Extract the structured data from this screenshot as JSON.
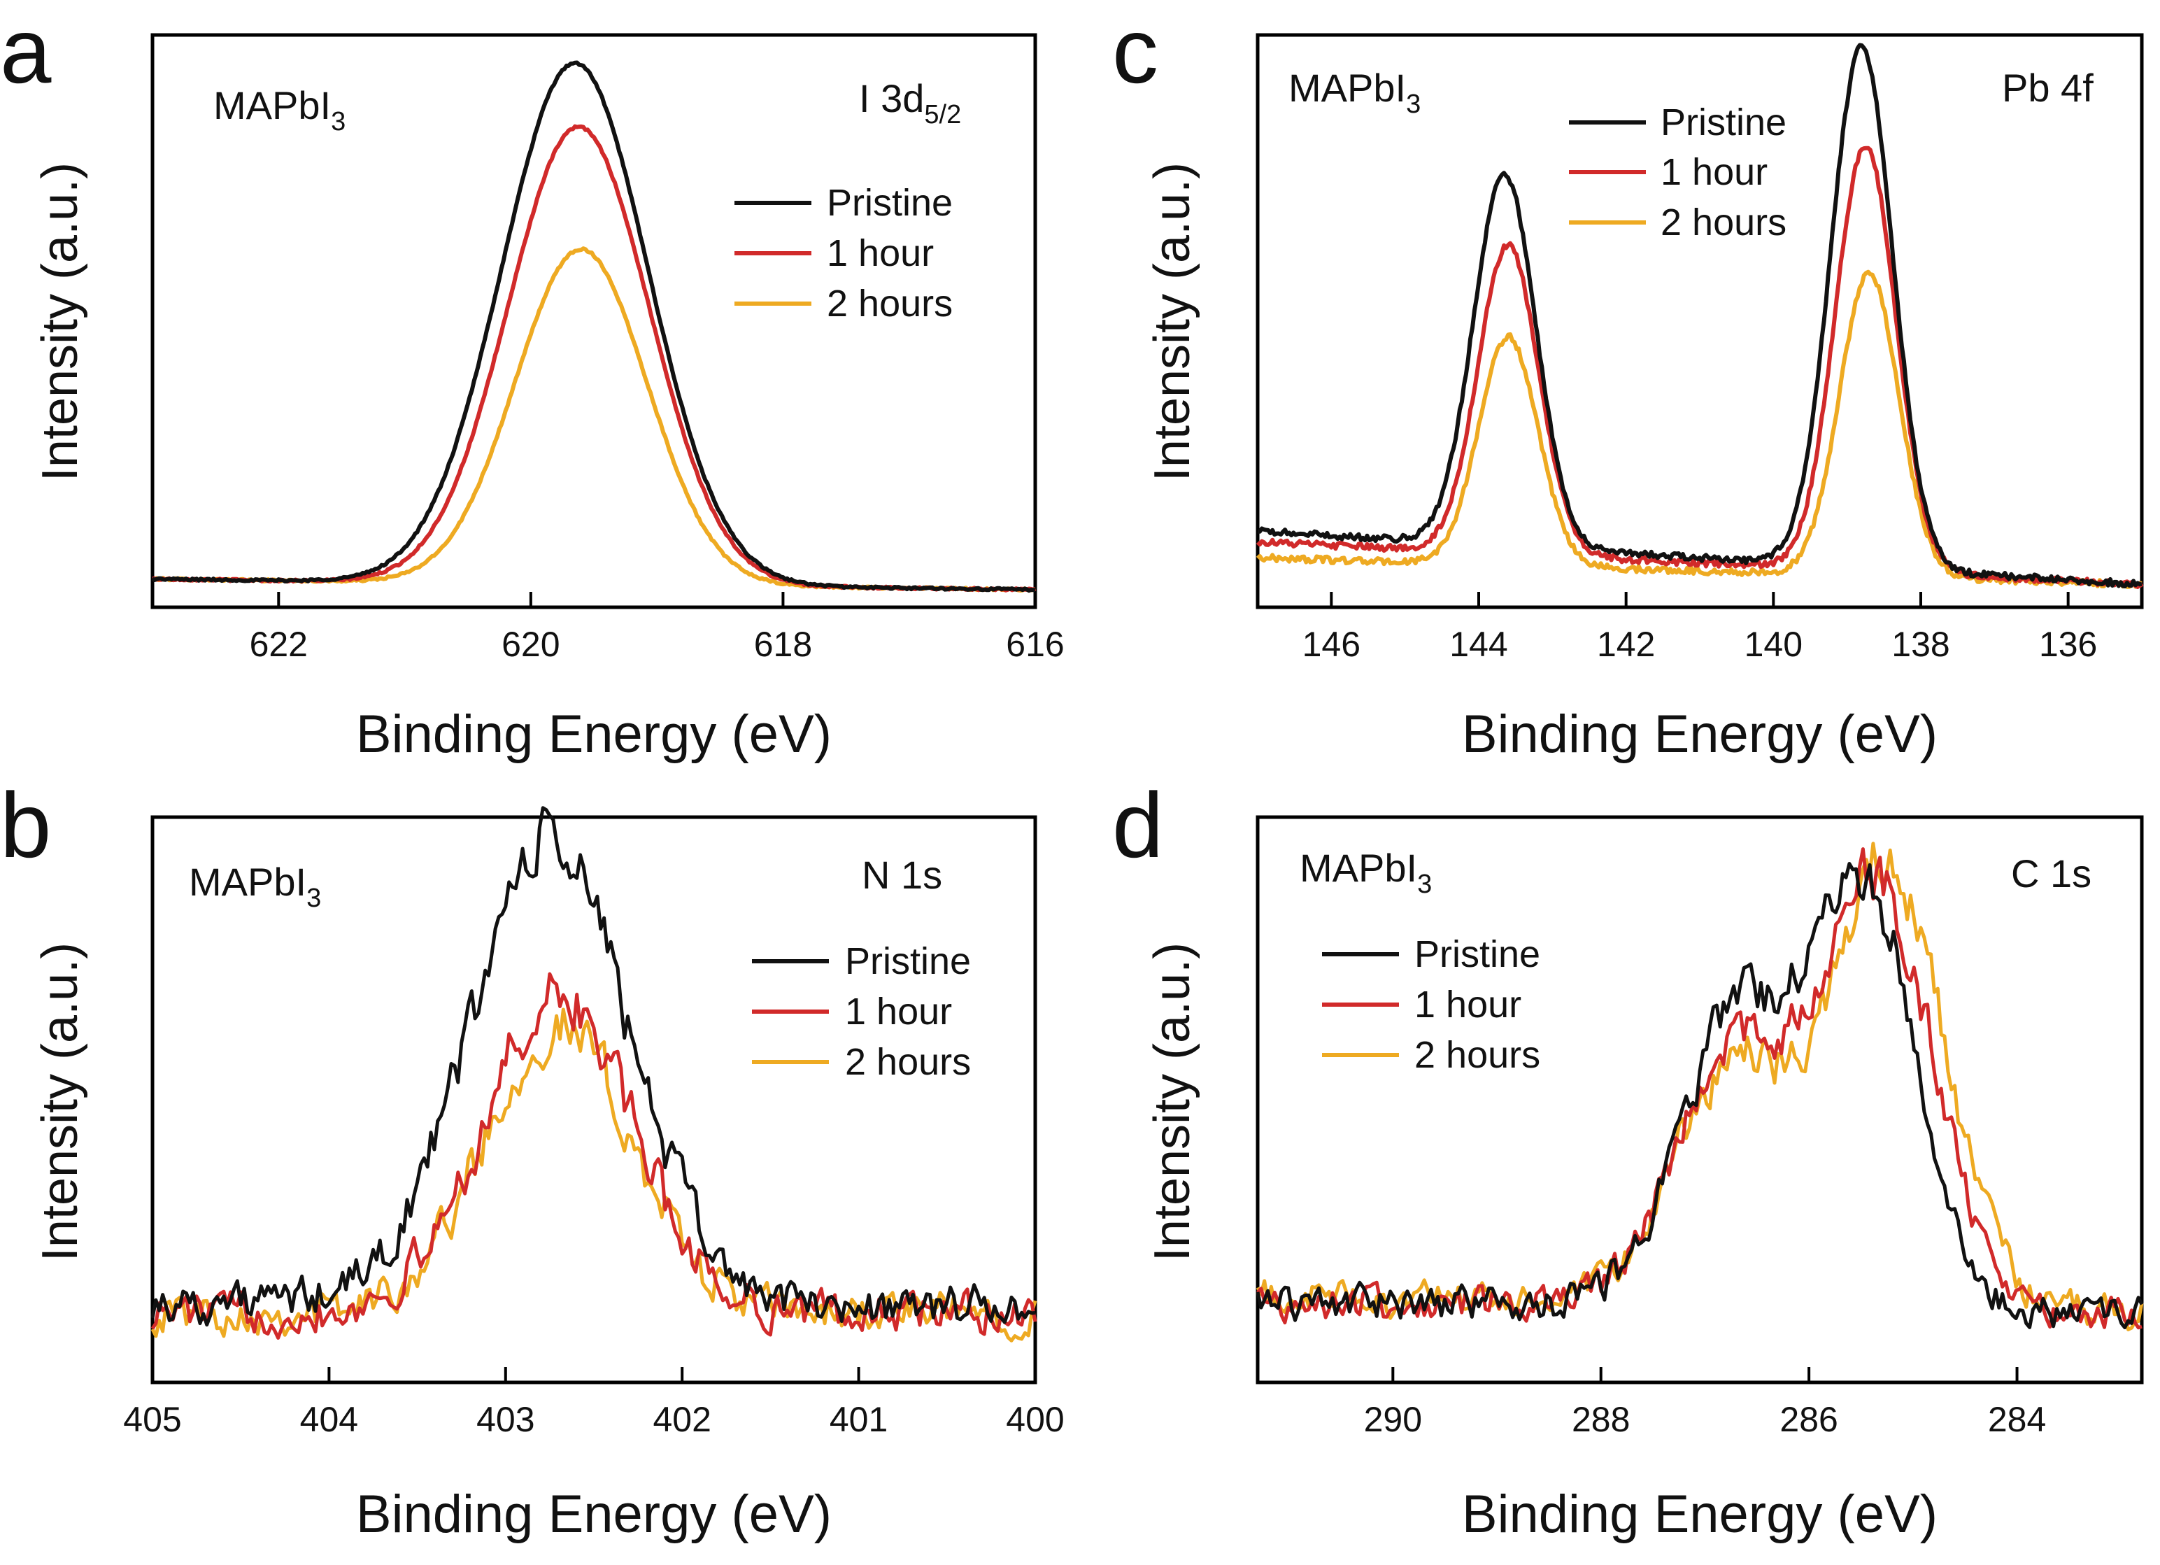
{
  "figure": {
    "colors": {
      "Pristine": "#111111",
      "1 hour": "#d12a2a",
      "2 hours": "#eeaa22"
    }
  },
  "chart_data": [
    {
      "type": "line",
      "panel": "a",
      "title": "I 3d5/2",
      "title_main": "I 3d",
      "title_sub": "5/2",
      "sample_label_main": "MAPbI",
      "sample_label_sub": "3",
      "xlabel": "Binding Energy (eV)",
      "ylabel": "Intensity (a.u.)",
      "xlim": [
        623,
        616
      ],
      "ylim": [
        0,
        1.05
      ],
      "xticks": [
        622,
        620,
        618,
        616
      ],
      "xtick_labels": [
        "622",
        "620",
        "618",
        "616"
      ],
      "legend": [
        "Pristine",
        "1 hour",
        "2 hours"
      ],
      "legend_position": "upper-right",
      "peak_shape": "smooth",
      "series": [
        {
          "name": "Pristine",
          "peaks": [
            {
              "center": 619.65,
              "height": 0.98,
              "width": 0.58
            }
          ],
          "baseline": [
            0.04,
            0.02
          ],
          "noise": 0.002
        },
        {
          "name": "1 hour",
          "peaks": [
            {
              "center": 619.62,
              "height": 0.86,
              "width": 0.56
            }
          ],
          "baseline": [
            0.04,
            0.02
          ],
          "noise": 0.002
        },
        {
          "name": "2 hours",
          "peaks": [
            {
              "center": 619.6,
              "height": 0.63,
              "width": 0.52
            }
          ],
          "baseline": [
            0.04,
            0.02
          ],
          "noise": 0.002
        }
      ]
    },
    {
      "type": "line",
      "panel": "b",
      "title": "N 1s",
      "sample_label_main": "MAPbI",
      "sample_label_sub": "3",
      "xlabel": "Binding Energy (eV)",
      "ylabel": "Intensity (a.u.)",
      "xlim": [
        405,
        400
      ],
      "ylim": [
        0,
        1.05
      ],
      "xticks": [
        405,
        404,
        403,
        402,
        401,
        400
      ],
      "xtick_labels": [
        "405",
        "404",
        "403",
        "402",
        "401",
        "400"
      ],
      "legend": [
        "Pristine",
        "1 hour",
        "2 hours"
      ],
      "legend_position": "right",
      "peak_shape": "noisy",
      "series": [
        {
          "name": "Pristine",
          "peaks": [
            {
              "center": 402.75,
              "height": 0.88,
              "width": 0.45
            }
          ],
          "baseline": [
            0.14,
            0.13
          ],
          "noise": 0.03
        },
        {
          "name": "1 hour",
          "peaks": [
            {
              "center": 402.7,
              "height": 0.6,
              "width": 0.42
            }
          ],
          "baseline": [
            0.12,
            0.12
          ],
          "noise": 0.03
        },
        {
          "name": "2 hours",
          "peaks": [
            {
              "center": 402.7,
              "height": 0.54,
              "width": 0.42
            }
          ],
          "baseline": [
            0.12,
            0.12
          ],
          "noise": 0.03
        }
      ]
    },
    {
      "type": "line",
      "panel": "c",
      "title": "Pb 4f",
      "sample_label_main": "MAPbI",
      "sample_label_sub": "3",
      "xlabel": "Binding Energy (eV)",
      "ylabel": "Intensity (a.u.)",
      "xlim": [
        147,
        135
      ],
      "ylim": [
        0,
        1.05
      ],
      "xticks": [
        146,
        144,
        142,
        140,
        138,
        136
      ],
      "xtick_labels": [
        "146",
        "144",
        "142",
        "140",
        "138",
        "136"
      ],
      "legend": [
        "Pristine",
        "1 hour",
        "2 hours"
      ],
      "legend_position": "top-center",
      "peak_shape": "smooth",
      "series": [
        {
          "name": "Pristine",
          "peaks": [
            {
              "center": 143.65,
              "height": 0.7,
              "width": 0.42
            },
            {
              "center": 138.8,
              "height": 0.98,
              "width": 0.42
            }
          ],
          "baseline": [
            0.13,
            0.03
          ],
          "noise": 0.006
        },
        {
          "name": "1 hour",
          "peaks": [
            {
              "center": 143.6,
              "height": 0.58,
              "width": 0.41
            },
            {
              "center": 138.75,
              "height": 0.8,
              "width": 0.41
            }
          ],
          "baseline": [
            0.11,
            0.03
          ],
          "noise": 0.006
        },
        {
          "name": "2 hours",
          "peaks": [
            {
              "center": 143.6,
              "height": 0.43,
              "width": 0.4
            },
            {
              "center": 138.7,
              "height": 0.57,
              "width": 0.4
            }
          ],
          "baseline": [
            0.08,
            0.03
          ],
          "noise": 0.006
        }
      ]
    },
    {
      "type": "line",
      "panel": "d",
      "title": "C 1s",
      "sample_label_main": "MAPbI",
      "sample_label_sub": "3",
      "xlabel": "Binding Energy (eV)",
      "ylabel": "Intensity (a.u.)",
      "xlim": [
        291.3,
        282.8
      ],
      "ylim": [
        0,
        1.05
      ],
      "xticks": [
        290,
        288,
        286,
        284
      ],
      "xtick_labels": [
        "290",
        "288",
        "286",
        "284"
      ],
      "legend": [
        "Pristine",
        "1 hour",
        "2 hours"
      ],
      "legend_position": "left",
      "peak_shape": "noisy",
      "series": [
        {
          "name": "Pristine",
          "peaks": [
            {
              "center": 286.7,
              "height": 0.55,
              "width": 0.55
            },
            {
              "center": 285.45,
              "height": 0.78,
              "width": 0.5
            }
          ],
          "baseline": [
            0.14,
            0.12
          ],
          "noise": 0.025
        },
        {
          "name": "1 hour",
          "peaks": [
            {
              "center": 286.75,
              "height": 0.48,
              "width": 0.55
            },
            {
              "center": 285.35,
              "height": 0.8,
              "width": 0.55
            }
          ],
          "baseline": [
            0.14,
            0.12
          ],
          "noise": 0.025
        },
        {
          "name": "2 hours",
          "peaks": [
            {
              "center": 286.75,
              "height": 0.45,
              "width": 0.55
            },
            {
              "center": 285.25,
              "height": 0.84,
              "width": 0.55
            }
          ],
          "baseline": [
            0.15,
            0.12
          ],
          "noise": 0.025
        }
      ]
    }
  ]
}
